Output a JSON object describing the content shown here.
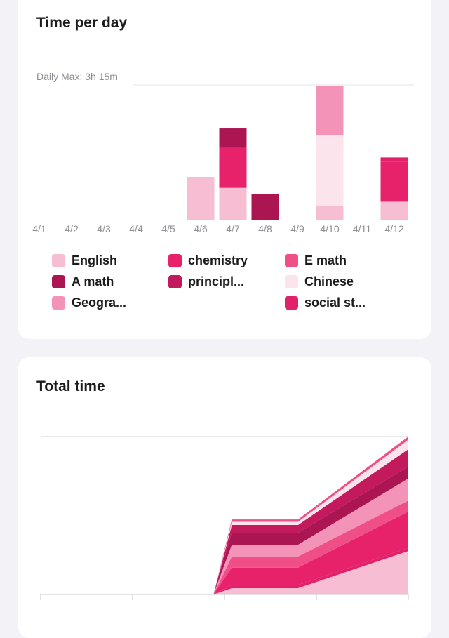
{
  "time_per_day": {
    "title": "Time per day",
    "daily_max_label": "Daily Max: 3h 15m"
  },
  "total_time": {
    "title": "Total time"
  },
  "subjects": [
    {
      "name": "English",
      "color": "#f7bdd2"
    },
    {
      "name": "chemistry",
      "color": "#e8226a"
    },
    {
      "name": "E math",
      "color": "#ef4f86"
    },
    {
      "name": "A math",
      "color": "#ab1552"
    },
    {
      "name": "principl...",
      "color": "#c31a5e"
    },
    {
      "name": "Chinese",
      "color": "#fce4ec"
    },
    {
      "name": "Geogra...",
      "color": "#f493b8"
    },
    {
      "name": "social st...",
      "color": "#e0216b"
    }
  ],
  "chart_data": [
    {
      "type": "bar",
      "stacked": true,
      "title": "Time per day",
      "categories": [
        "4/1",
        "4/2",
        "4/3",
        "4/4",
        "4/5",
        "4/6",
        "4/7",
        "4/8",
        "4/9",
        "4/10",
        "4/11",
        "4/12"
      ],
      "max_value_minutes": 195,
      "series": [
        {
          "name": "English",
          "values": [
            0,
            0,
            0,
            0,
            0,
            62,
            46,
            0,
            0,
            20,
            0,
            26
          ]
        },
        {
          "name": "chemistry",
          "values": [
            0,
            0,
            0,
            0,
            0,
            0,
            58,
            0,
            0,
            0,
            0,
            58
          ]
        },
        {
          "name": "A math",
          "values": [
            0,
            0,
            0,
            0,
            0,
            0,
            28,
            37,
            0,
            0,
            0,
            0
          ]
        },
        {
          "name": "Chinese",
          "values": [
            0,
            0,
            0,
            0,
            0,
            0,
            0,
            0,
            0,
            102,
            0,
            0
          ]
        },
        {
          "name": "Geogra...",
          "values": [
            0,
            0,
            0,
            0,
            0,
            0,
            0,
            0,
            0,
            72,
            0,
            0
          ]
        },
        {
          "name": "social st...",
          "values": [
            0,
            0,
            0,
            0,
            0,
            0,
            0,
            0,
            0,
            0,
            0,
            6
          ]
        }
      ]
    },
    {
      "type": "area",
      "stacked": true,
      "title": "Total time",
      "x_ticks": 5,
      "x": [
        0,
        0.47,
        0.52,
        0.6,
        0.7,
        1.0
      ],
      "series": [
        {
          "name": "English",
          "values": [
            0,
            0,
            8,
            8,
            8,
            55
          ]
        },
        {
          "name": "social st...",
          "values": [
            0,
            0,
            4,
            4,
            4,
            4
          ]
        },
        {
          "name": "chemistry",
          "values": [
            0,
            0,
            22,
            22,
            22,
            46
          ]
        },
        {
          "name": "E math",
          "values": [
            0,
            0,
            14,
            14,
            14,
            14
          ]
        },
        {
          "name": "Geogra...",
          "values": [
            0,
            0,
            15,
            15,
            15,
            28
          ]
        },
        {
          "name": "A math",
          "values": [
            0,
            0,
            15,
            15,
            15,
            15
          ]
        },
        {
          "name": "principl...",
          "values": [
            0,
            0,
            10,
            10,
            10,
            22
          ]
        },
        {
          "name": "Chinese",
          "values": [
            0,
            0,
            4,
            4,
            4,
            12
          ]
        },
        {
          "name": "E math",
          "values": [
            0,
            0,
            3,
            3,
            3,
            4
          ]
        }
      ]
    }
  ]
}
